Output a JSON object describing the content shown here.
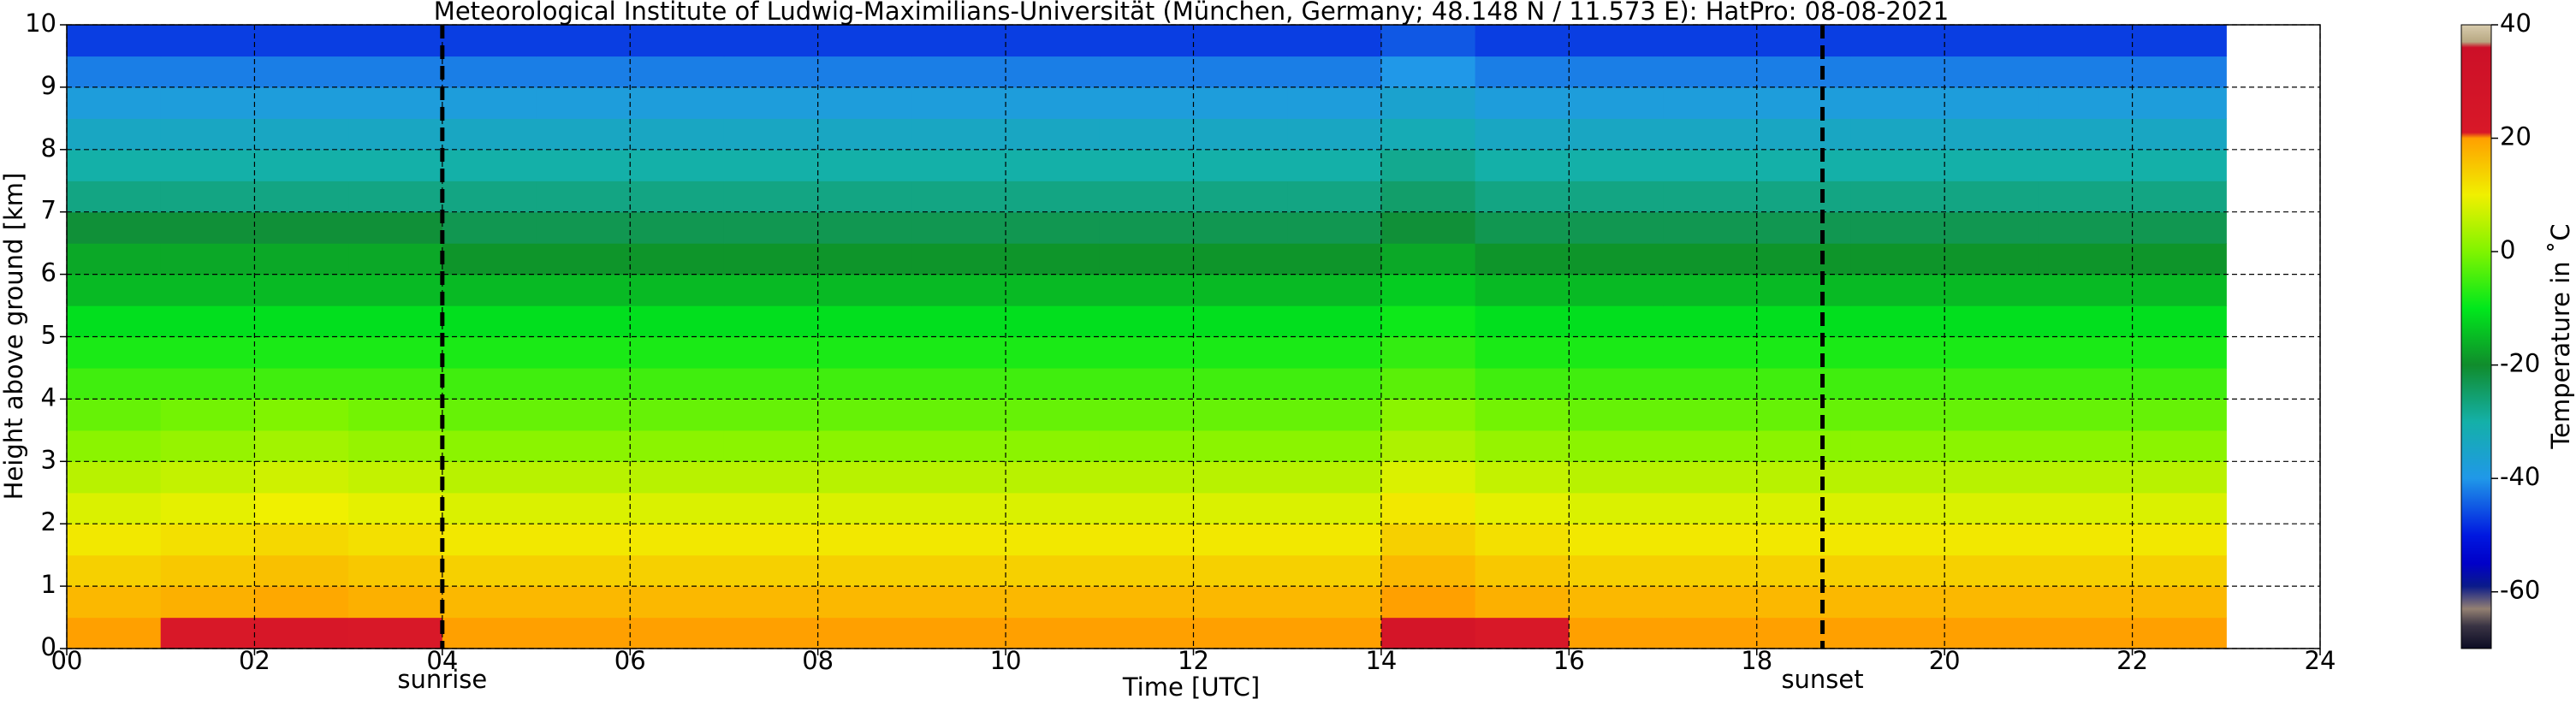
{
  "chart_data": {
    "type": "heatmap",
    "title": "Meteorological Institute of Ludwig-Maximilians-Universität (München, Germany; 48.148 N / 11.573 E):    HatPro: 08-08-2021",
    "xlabel": "Time [UTC]",
    "ylabel": "Height above ground [km]",
    "colorbar_label": "Temperature in ˚C",
    "xlim": [
      0,
      24
    ],
    "ylim": [
      0,
      10
    ],
    "xticks": [
      {
        "value": 0,
        "label": "00"
      },
      {
        "value": 2,
        "label": "02"
      },
      {
        "value": 4,
        "label": "04"
      },
      {
        "value": 6,
        "label": "06"
      },
      {
        "value": 8,
        "label": "08"
      },
      {
        "value": 10,
        "label": "10"
      },
      {
        "value": 12,
        "label": "12"
      },
      {
        "value": 14,
        "label": "14"
      },
      {
        "value": 16,
        "label": "16"
      },
      {
        "value": 18,
        "label": "18"
      },
      {
        "value": 20,
        "label": "20"
      },
      {
        "value": 22,
        "label": "22"
      },
      {
        "value": 24,
        "label": "24"
      }
    ],
    "yticks": [
      0,
      1,
      2,
      3,
      4,
      5,
      6,
      7,
      8,
      9,
      10
    ],
    "grid": true,
    "clim": [
      -70,
      40
    ],
    "cticks": [
      -60,
      -40,
      -20,
      0,
      20,
      40
    ],
    "colorscale": [
      [
        -70,
        "#0c0c24"
      ],
      [
        -66,
        "#3a3444"
      ],
      [
        -63,
        "#938072"
      ],
      [
        -59,
        "#0a1a8a"
      ],
      [
        -55,
        "#0000c8"
      ],
      [
        -50,
        "#0018e0"
      ],
      [
        -40,
        "#2098e8"
      ],
      [
        -30,
        "#14b0a8"
      ],
      [
        -20,
        "#108c2c"
      ],
      [
        -10,
        "#00e81c"
      ],
      [
        0,
        "#80f400"
      ],
      [
        10,
        "#f0f000"
      ],
      [
        20,
        "#ffa000"
      ],
      [
        21,
        "#d81828"
      ],
      [
        36,
        "#cc1028"
      ],
      [
        37,
        "#b8a882"
      ],
      [
        40,
        "#d8ccae"
      ]
    ],
    "markers": [
      {
        "label": "sunrise",
        "x": 4.0
      },
      {
        "label": "sunset",
        "x": 18.7
      }
    ],
    "xbins": [
      0,
      1,
      2,
      3,
      4,
      5,
      6,
      7,
      8,
      9,
      10,
      11,
      12,
      13,
      14,
      15,
      16,
      17,
      18,
      19,
      20,
      21,
      22,
      23
    ],
    "ybins": [
      0,
      0.5,
      1,
      1.5,
      2,
      2.5,
      3,
      3.5,
      4,
      4.5,
      5,
      5.5,
      6,
      6.5,
      7,
      7.5,
      8,
      8.5,
      9,
      9.5,
      10
    ],
    "z": [
      [
        20,
        21,
        22,
        21,
        20,
        20,
        20,
        20,
        20,
        20,
        20,
        20,
        20,
        20,
        26,
        21,
        20,
        20,
        20,
        20,
        20,
        20,
        20
      ],
      [
        17,
        18,
        19,
        18,
        17,
        17,
        17,
        17,
        17,
        17,
        17,
        17,
        17,
        17,
        20,
        18,
        17,
        17,
        17,
        17,
        17,
        17,
        17
      ],
      [
        14,
        15,
        16,
        15,
        14,
        14,
        14,
        14,
        14,
        14,
        14,
        14,
        14,
        14,
        17,
        15,
        14,
        14,
        14,
        14,
        14,
        14,
        14
      ],
      [
        11,
        12,
        13,
        12,
        11,
        11,
        11,
        11,
        11,
        11,
        11,
        11,
        11,
        11,
        14,
        12,
        11,
        11,
        11,
        11,
        11,
        11,
        11
      ],
      [
        8,
        9,
        10,
        9,
        8,
        8,
        8,
        8,
        8,
        8,
        8,
        8,
        8,
        8,
        11,
        9,
        8,
        8,
        8,
        8,
        8,
        8,
        8
      ],
      [
        5,
        6,
        7,
        6,
        5,
        5,
        5,
        5,
        5,
        5,
        5,
        5,
        5,
        5,
        8,
        6,
        5,
        5,
        5,
        5,
        5,
        5,
        5
      ],
      [
        1,
        2,
        3,
        2,
        1,
        1,
        1,
        1,
        1,
        1,
        1,
        1,
        1,
        1,
        4,
        2,
        1,
        1,
        1,
        1,
        1,
        1,
        1
      ],
      [
        -2,
        -1,
        0,
        -1,
        -2,
        -2,
        -2,
        -2,
        -2,
        -2,
        -2,
        -2,
        -2,
        -2,
        1,
        -1,
        -2,
        -2,
        -2,
        -2,
        -2,
        -2,
        -2
      ],
      [
        -5,
        -5,
        -5,
        -5,
        -5,
        -5,
        -5,
        -5,
        -5,
        -5,
        -5,
        -5,
        -5,
        -5,
        -3,
        -5,
        -5,
        -5,
        -5,
        -5,
        -5,
        -5,
        -5
      ],
      [
        -8,
        -8,
        -8,
        -8,
        -8,
        -8,
        -8,
        -8,
        -8,
        -8,
        -8,
        -8,
        -8,
        -8,
        -6,
        -8,
        -8,
        -8,
        -8,
        -8,
        -8,
        -8,
        -8
      ],
      [
        -11,
        -11,
        -11,
        -11,
        -11,
        -11,
        -11,
        -11,
        -11,
        -11,
        -11,
        -11,
        -11,
        -11,
        -9,
        -11,
        -11,
        -11,
        -11,
        -11,
        -11,
        -11,
        -11
      ],
      [
        -15,
        -15,
        -15,
        -15,
        -15,
        -15,
        -15,
        -15,
        -15,
        -15,
        -15,
        -15,
        -15,
        -15,
        -13,
        -15,
        -15,
        -15,
        -15,
        -15,
        -15,
        -15,
        -15
      ],
      [
        -17,
        -17,
        -17,
        -17,
        -19,
        -19,
        -19,
        -19,
        -19,
        -19,
        -19,
        -19,
        -19,
        -19,
        -17,
        -19,
        -19,
        -19,
        -19,
        -19,
        -19,
        -19,
        -19
      ],
      [
        -21,
        -21,
        -21,
        -21,
        -23,
        -23,
        -23,
        -23,
        -23,
        -23,
        -23,
        -23,
        -23,
        -23,
        -21,
        -23,
        -23,
        -23,
        -23,
        -23,
        -23,
        -23,
        -23
      ],
      [
        -27,
        -27,
        -27,
        -27,
        -27,
        -27,
        -27,
        -27,
        -27,
        -27,
        -27,
        -27,
        -27,
        -27,
        -25,
        -27,
        -27,
        -27,
        -27,
        -27,
        -27,
        -27,
        -27
      ],
      [
        -30,
        -30,
        -30,
        -30,
        -30,
        -30,
        -30,
        -30,
        -30,
        -30,
        -30,
        -30,
        -30,
        -30,
        -28,
        -30,
        -30,
        -30,
        -30,
        -30,
        -30,
        -30,
        -30
      ],
      [
        -34,
        -34,
        -34,
        -34,
        -34,
        -34,
        -34,
        -34,
        -34,
        -34,
        -34,
        -34,
        -34,
        -34,
        -32,
        -34,
        -34,
        -34,
        -34,
        -34,
        -34,
        -34,
        -34
      ],
      [
        -38,
        -38,
        -38,
        -38,
        -38,
        -38,
        -38,
        -38,
        -38,
        -38,
        -38,
        -38,
        -38,
        -38,
        -36,
        -38,
        -38,
        -38,
        -38,
        -38,
        -38,
        -38,
        -38
      ],
      [
        -42,
        -42,
        -42,
        -42,
        -42,
        -42,
        -42,
        -42,
        -42,
        -42,
        -42,
        -42,
        -42,
        -42,
        -40,
        -42,
        -42,
        -42,
        -42,
        -42,
        -42,
        -42,
        -42
      ],
      [
        -47,
        -47,
        -47,
        -47,
        -47,
        -47,
        -47,
        -47,
        -47,
        -47,
        -47,
        -47,
        -47,
        -47,
        -45,
        -47,
        -47,
        -47,
        -47,
        -47,
        -47,
        -47,
        -47
      ]
    ]
  }
}
